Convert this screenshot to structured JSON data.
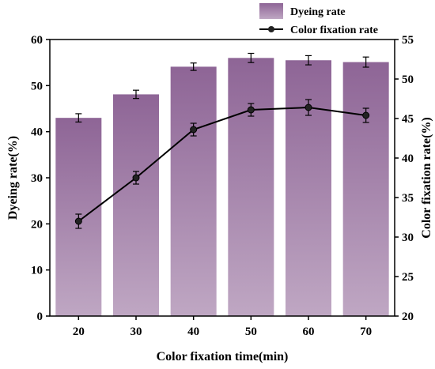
{
  "chart_data": {
    "type": "bar",
    "xlabel": "Color fixation time(min)",
    "ylabel": "Dyeing rate(%)",
    "y2label": "Color fixation rate(%)",
    "categories": [
      "20",
      "30",
      "40",
      "50",
      "60",
      "70"
    ],
    "ylim": [
      0,
      60
    ],
    "y2lim": [
      20,
      55
    ],
    "yticks": [
      "0",
      "10",
      "20",
      "30",
      "40",
      "50",
      "60"
    ],
    "y2ticks": [
      "20",
      "25",
      "30",
      "35",
      "40",
      "45",
      "50",
      "55"
    ],
    "legend_position": "top-right",
    "series": [
      {
        "name": "Dyeing rate",
        "type": "bar",
        "axis": "left",
        "values": [
          43.0,
          48.1,
          54.1,
          56.0,
          55.5,
          55.1
        ],
        "errors": [
          0.9,
          0.9,
          0.8,
          1.0,
          1.0,
          1.1
        ],
        "color_top": "#8e6596",
        "color_bottom": "#bfa7c3"
      },
      {
        "name": "Color fixation rate",
        "type": "line",
        "axis": "right",
        "values": [
          32.0,
          37.5,
          43.6,
          46.1,
          46.4,
          45.4
        ],
        "errors": [
          0.9,
          0.8,
          0.8,
          0.8,
          1.0,
          0.9
        ],
        "color": "#000000"
      }
    ]
  }
}
